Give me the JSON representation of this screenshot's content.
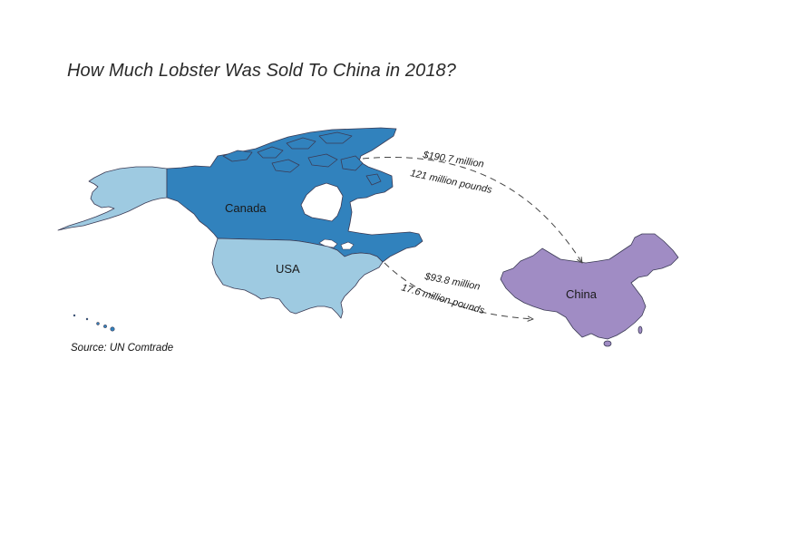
{
  "title": "How Much Lobster Was Sold To China in 2018?",
  "source": "Source: UN Comtrade",
  "countries": {
    "canada": {
      "label": "Canada",
      "color": "#3182bd"
    },
    "usa": {
      "label": "USA",
      "color": "#9ecae1"
    },
    "china": {
      "label": "China",
      "color": "#a08cc4"
    }
  },
  "flows": {
    "canada_to_china": {
      "value": "$190.7 million",
      "weight": "121 million pounds"
    },
    "usa_to_china": {
      "value": "$93.8 million",
      "weight": "17.6 million pounds"
    }
  },
  "style": {
    "border_color": "#3b3b55",
    "arrow_color": "#444444"
  }
}
